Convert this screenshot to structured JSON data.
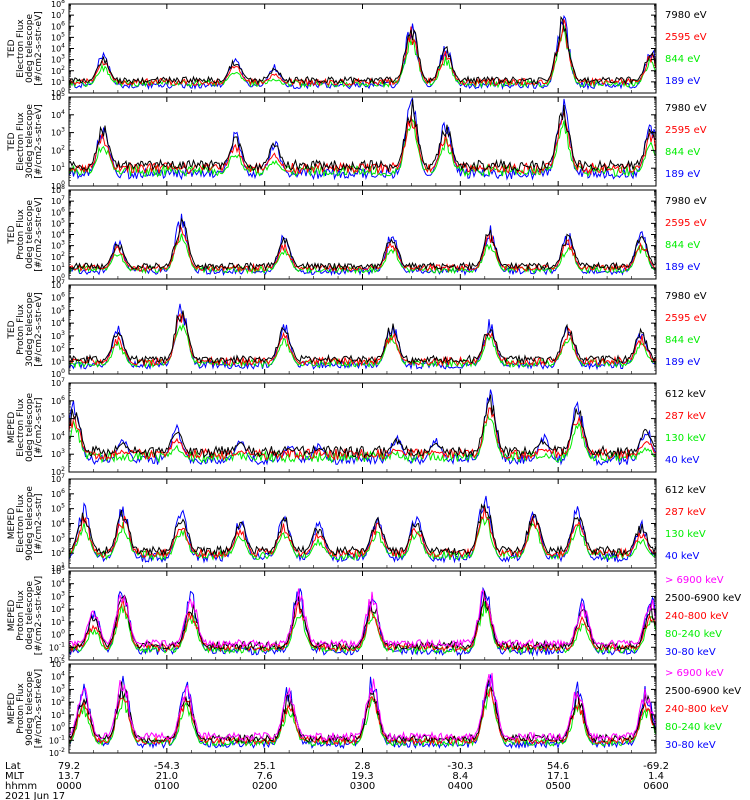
{
  "chart_data": [
    {
      "type": "line",
      "ylabel": [
        "TED",
        "Electron Flux",
        "0deg telescope",
        "[#/cm2-s-str-eV]"
      ],
      "log_y": true,
      "y_decades": [
        0,
        8
      ],
      "series": [
        {
          "name": "7980 eV",
          "color": "#000000"
        },
        {
          "name": "2595 eV",
          "color": "#ff0000"
        },
        {
          "name": "844 eV",
          "color": "#00ee00"
        },
        {
          "name": "189 eV",
          "color": "#0000ff"
        }
      ],
      "bursts_hours": [
        0.35,
        1.7,
        2.1,
        3.5,
        3.85,
        5.05,
        5.95
      ],
      "bursts_peak_decade": [
        3.5,
        3.2,
        2.4,
        6.2,
        4.2,
        6.8,
        4.0
      ]
    },
    {
      "type": "line",
      "ylabel": [
        "TED",
        "Electron Flux",
        "30deg telescope",
        "[#/cm2-s-str-eV]"
      ],
      "log_y": true,
      "y_decades": [
        0,
        5
      ],
      "series": [
        {
          "name": "7980 eV",
          "color": "#000000"
        },
        {
          "name": "2595 eV",
          "color": "#ff0000"
        },
        {
          "name": "844 eV",
          "color": "#00ee00"
        },
        {
          "name": "189 eV",
          "color": "#0000ff"
        }
      ],
      "bursts_hours": [
        0.35,
        1.7,
        2.1,
        3.5,
        3.85,
        5.05,
        5.95
      ],
      "bursts_peak_decade": [
        3.5,
        3.0,
        2.5,
        4.8,
        3.6,
        4.6,
        3.5
      ]
    },
    {
      "type": "line",
      "ylabel": [
        "TED",
        "Proton Flux",
        "0deg telescope",
        "[#/cm2-s-str-eV]"
      ],
      "log_y": true,
      "y_decades": [
        0,
        8
      ],
      "series": [
        {
          "name": "7980 eV",
          "color": "#000000"
        },
        {
          "name": "2595 eV",
          "color": "#ff0000"
        },
        {
          "name": "844 eV",
          "color": "#00ee00"
        },
        {
          "name": "189 eV",
          "color": "#0000ff"
        }
      ],
      "bursts_hours": [
        0.5,
        1.15,
        2.2,
        3.3,
        4.3,
        5.1,
        5.85
      ],
      "bursts_peak_decade": [
        3.5,
        5.5,
        3.8,
        4.0,
        4.5,
        4.0,
        4.0
      ]
    },
    {
      "type": "line",
      "ylabel": [
        "TED",
        "Proton Flux",
        "30deg telescope",
        "[#/cm2-s-str-eV]"
      ],
      "log_y": true,
      "y_decades": [
        0,
        7
      ],
      "series": [
        {
          "name": "7980 eV",
          "color": "#000000"
        },
        {
          "name": "2595 eV",
          "color": "#ff0000"
        },
        {
          "name": "844 eV",
          "color": "#00ee00"
        },
        {
          "name": "189 eV",
          "color": "#0000ff"
        }
      ],
      "bursts_hours": [
        0.5,
        1.15,
        2.2,
        3.3,
        4.3,
        5.1,
        5.85
      ],
      "bursts_peak_decade": [
        3.5,
        5.5,
        3.8,
        4.0,
        4.0,
        4.0,
        3.5
      ]
    },
    {
      "type": "line",
      "ylabel": [
        "MEPED",
        "Electron Flux",
        "0deg telescope",
        "[#/cm2-s-str]"
      ],
      "log_y": true,
      "y_decades": [
        2,
        7
      ],
      "series": [
        {
          "name": "612 keV",
          "color": "#000000"
        },
        {
          "name": "287 keV",
          "color": "#ff0000"
        },
        {
          "name": "130 keV",
          "color": "#00ee00"
        },
        {
          "name": "40 keV",
          "color": "#0000ff"
        }
      ],
      "bursts_hours": [
        0.05,
        0.55,
        1.1,
        1.75,
        2.25,
        2.55,
        3.35,
        3.75,
        4.3,
        4.85,
        5.2,
        5.9
      ],
      "bursts_peak_decade": [
        5.8,
        3.8,
        4.5,
        3.8,
        3.5,
        3.5,
        4.0,
        3.8,
        6.3,
        4.0,
        5.8,
        4.5
      ]
    },
    {
      "type": "line",
      "ylabel": [
        "MEPED",
        "Electron Flux",
        "90deg telescope",
        "[#/cm2-s-str]"
      ],
      "log_y": true,
      "y_decades": [
        1,
        7
      ],
      "series": [
        {
          "name": "612 keV",
          "color": "#000000"
        },
        {
          "name": "287 keV",
          "color": "#ff0000"
        },
        {
          "name": "130 keV",
          "color": "#00ee00"
        },
        {
          "name": "40 keV",
          "color": "#0000ff"
        }
      ],
      "bursts_hours": [
        0.15,
        0.55,
        1.15,
        1.75,
        2.2,
        2.55,
        3.15,
        3.55,
        4.25,
        4.75,
        5.2,
        5.85
      ],
      "bursts_peak_decade": [
        5.0,
        5.0,
        4.8,
        4.2,
        4.5,
        4.0,
        4.5,
        4.5,
        5.8,
        5.0,
        5.0,
        4.0
      ]
    },
    {
      "type": "line",
      "ylabel": [
        "MEPED",
        "Proton Flux",
        "0deg telescope",
        "[#/cm2-s-str-keV]"
      ],
      "log_y": true,
      "y_decades": [
        -2,
        5
      ],
      "series": [
        {
          "name": "> 6900 keV",
          "color": "#ff00ff"
        },
        {
          "name": "2500-6900 keV",
          "color": "#000000"
        },
        {
          "name": "240-800 keV",
          "color": "#ff0000"
        },
        {
          "name": "80-240 keV",
          "color": "#00ee00"
        },
        {
          "name": "30-80 keV",
          "color": "#0000ff"
        }
      ],
      "bursts_hours": [
        0.25,
        0.55,
        1.25,
        2.35,
        3.1,
        4.25,
        5.25,
        5.95
      ],
      "bursts_peak_decade": [
        2.0,
        3.8,
        3.0,
        3.5,
        3.2,
        3.8,
        2.5,
        2.8
      ]
    },
    {
      "type": "line",
      "ylabel": [
        "MEPED",
        "Proton Flux",
        "90deg telescope",
        "[#/cm2-s-str-keV]"
      ],
      "log_y": true,
      "y_decades": [
        -2,
        5
      ],
      "series": [
        {
          "name": "> 6900 keV",
          "color": "#ff00ff"
        },
        {
          "name": "2500-6900 keV",
          "color": "#000000"
        },
        {
          "name": "240-800 keV",
          "color": "#ff0000"
        },
        {
          "name": "80-240 keV",
          "color": "#00ee00"
        },
        {
          "name": "30-80 keV",
          "color": "#0000ff"
        }
      ],
      "bursts_hours": [
        0.15,
        0.55,
        1.2,
        2.25,
        3.1,
        4.3,
        5.2,
        5.9
      ],
      "bursts_peak_decade": [
        3.2,
        4.0,
        3.5,
        3.2,
        3.8,
        4.5,
        3.2,
        3.0
      ]
    }
  ],
  "x_axis": {
    "rows": [
      {
        "label": "Lat",
        "values": [
          "79.2",
          "-54.3",
          "25.1",
          "2.8",
          "-30.3",
          "54.6",
          "-69.2"
        ]
      },
      {
        "label": "MLT",
        "values": [
          "13.7",
          "21.0",
          "7.6",
          "19.3",
          "8.4",
          "17.1",
          "1.4"
        ]
      },
      {
        "label": "hhmm",
        "values": [
          "0000",
          "0100",
          "0200",
          "0300",
          "0400",
          "0500",
          "0600"
        ]
      }
    ],
    "date": "2021 Jun 17",
    "hours_range": [
      0,
      6
    ]
  }
}
